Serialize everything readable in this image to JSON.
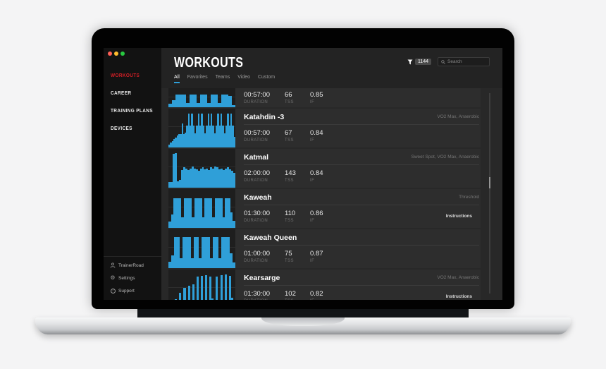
{
  "colors": {
    "accent_blue": "#2f9fd8",
    "accent_red": "#d21f26",
    "traffic_close": "#ff5f57",
    "traffic_min": "#febc2e",
    "traffic_zoom": "#28c840"
  },
  "sidebar": {
    "items": [
      {
        "label": "WORKOUTS",
        "active": true
      },
      {
        "label": "CAREER"
      },
      {
        "label": "TRAINING PLANS"
      },
      {
        "label": "DEVICES"
      }
    ],
    "footer": [
      {
        "icon": "user-icon",
        "label": "TrainerRoad"
      },
      {
        "icon": "gear-icon",
        "label": "Settings"
      },
      {
        "icon": "question-icon",
        "label": "Support"
      }
    ]
  },
  "header": {
    "title": "WORKOUTS",
    "filter_count": "1144",
    "search_placeholder": "Search",
    "tabs": [
      {
        "label": "All",
        "active": true
      },
      {
        "label": "Favorites"
      },
      {
        "label": "Teams"
      },
      {
        "label": "Video"
      },
      {
        "label": "Custom"
      }
    ]
  },
  "workouts": {
    "stat_labels": {
      "duration": "DURATION",
      "tss": "TSS",
      "if": "IF"
    },
    "rows": [
      {
        "name": "",
        "tags": "",
        "duration": "00:57:00",
        "tss": "66",
        "if": "0.85",
        "instructions": "",
        "clipped": true,
        "profile": [
          20,
          38,
          66,
          66,
          66,
          24,
          66,
          66,
          24,
          66,
          66,
          24,
          66,
          66,
          24,
          66,
          66,
          60,
          12
        ]
      },
      {
        "name": "Katahdin -3",
        "tags": "VO2 Max, Anaerobic",
        "duration": "00:57:00",
        "tss": "67",
        "if": "0.84",
        "instructions": "",
        "profile": [
          8,
          13,
          17,
          22,
          26,
          31,
          35,
          35,
          62,
          35,
          38,
          56,
          88,
          56,
          88,
          56,
          36,
          56,
          88,
          56,
          88,
          56,
          36,
          56,
          88,
          56,
          88,
          56,
          36,
          56,
          88,
          56,
          88,
          56,
          36,
          56,
          88,
          56,
          88,
          56,
          28
        ]
      },
      {
        "name": "Katmal",
        "tags": "Sweet Spot, VO2 Max, Anaerobic",
        "duration": "02:00:00",
        "tss": "143",
        "if": "0.84",
        "instructions": "",
        "profile": [
          14,
          15,
          88,
          90,
          16,
          20,
          46,
          52,
          50,
          46,
          50,
          55,
          50,
          48,
          43,
          50,
          53,
          48,
          50,
          46,
          52,
          50,
          55,
          52,
          48,
          50,
          46,
          50,
          52,
          48,
          43,
          38
        ]
      },
      {
        "name": "Kaweah",
        "tags": "Threshold",
        "duration": "01:30:00",
        "tss": "110",
        "if": "0.86",
        "instructions": "Instructions",
        "profile": [
          16,
          34,
          76,
          76,
          76,
          27,
          76,
          76,
          76,
          27,
          76,
          76,
          76,
          27,
          76,
          76,
          76,
          27,
          76,
          76,
          76,
          27,
          76,
          76,
          40,
          18
        ]
      },
      {
        "name": "Kaweah Queen",
        "tags": "",
        "duration": "01:00:00",
        "tss": "75",
        "if": "0.87",
        "instructions": "",
        "profile": [
          16,
          32,
          80,
          80,
          26,
          80,
          80,
          80,
          26,
          80,
          80,
          26,
          80,
          80,
          80,
          26,
          80,
          80,
          26,
          80,
          80,
          80,
          38,
          14
        ]
      },
      {
        "name": "Kearsarge",
        "tags": "VO2 Max, Anaerobic",
        "duration": "01:30:00",
        "tss": "102",
        "if": "0.82",
        "instructions": "Instructions",
        "profile": [
          6,
          16,
          20,
          24,
          8,
          40,
          8,
          52,
          8,
          58,
          8,
          62,
          10,
          82,
          12,
          84,
          12,
          86,
          12,
          82,
          26,
          10,
          82,
          14,
          86,
          14,
          88,
          14,
          84,
          28,
          8
        ]
      }
    ]
  }
}
